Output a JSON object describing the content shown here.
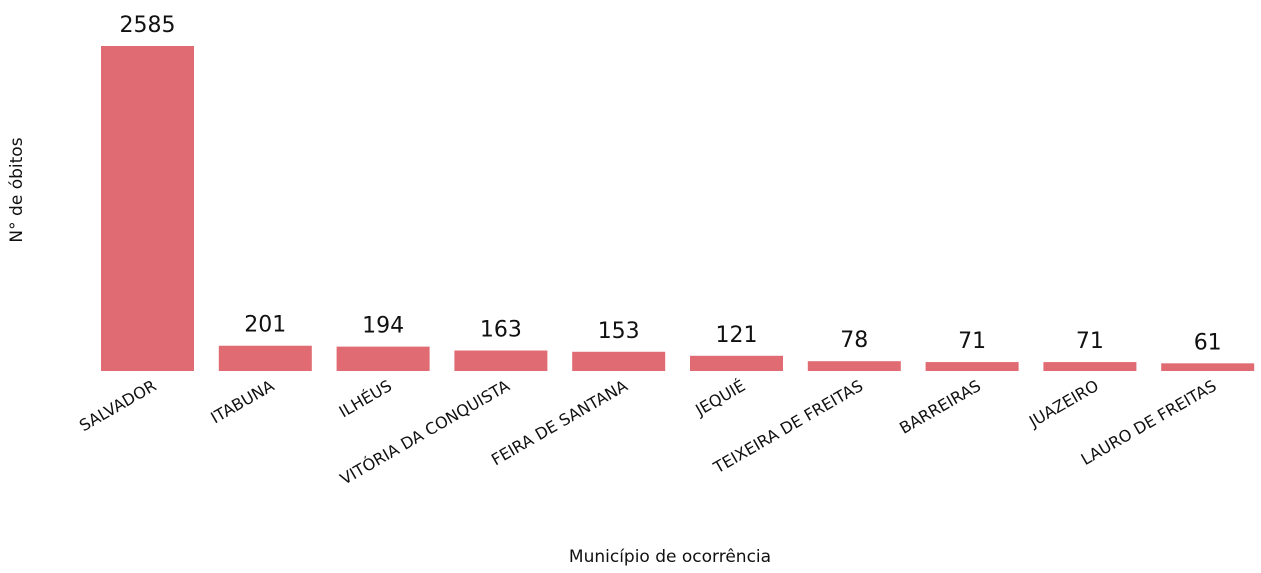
{
  "chart_data": {
    "type": "bar",
    "x_label": "Município de ocorrência",
    "y_label": "N° de óbitos",
    "categories": [
      "SALVADOR",
      "ITABUNA",
      "ILHÉUS",
      "VITÓRIA DA CONQUISTA",
      "FEIRA DE SANTANA",
      "JEQUIÉ",
      "TEIXEIRA DE FREITAS",
      "BARREIRAS",
      "JUAZEIRO",
      "LAURO DE FREITAS"
    ],
    "values": [
      2585,
      201,
      194,
      163,
      153,
      121,
      78,
      71,
      71,
      61
    ],
    "color": "#e06b73"
  }
}
